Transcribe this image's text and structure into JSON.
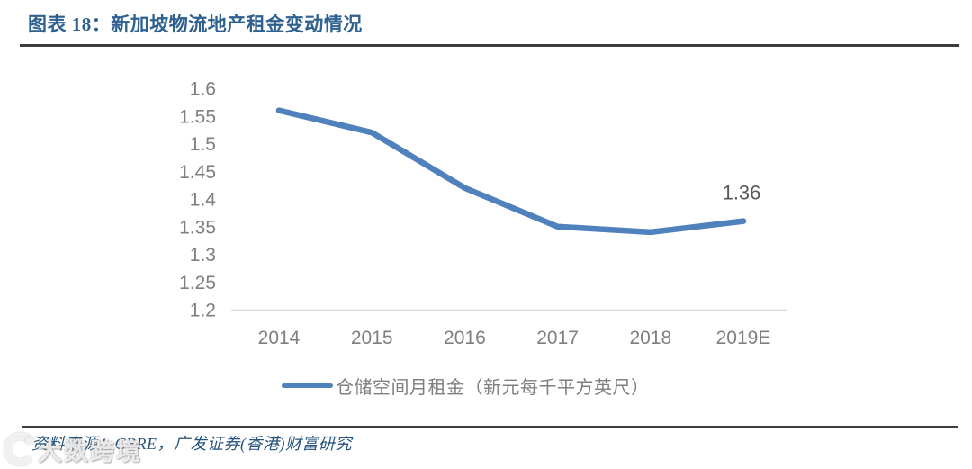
{
  "figure": {
    "title": "图表 18：新加坡物流地产租金变动情况",
    "source_note": "资料来源：CBRE，广发证券(香港)财富研究",
    "watermark_text": "大数跨境"
  },
  "colors": {
    "title_blue": "#2E6090",
    "source_blue": "#24527C",
    "line_blue": "#4F81BD",
    "tick_gray": "#7F7F7F",
    "data_label_gray": "#595959",
    "rule_dark": "#3D3D3D",
    "axis_line_gray": "#D9D9D9"
  },
  "chart_data": {
    "type": "line",
    "categories": [
      "2014",
      "2015",
      "2016",
      "2017",
      "2018",
      "2019E"
    ],
    "series": [
      {
        "name": "仓储空间月租金（新元每千平方英尺）",
        "values": [
          1.56,
          1.52,
          1.42,
          1.35,
          1.34,
          1.36
        ]
      }
    ],
    "title": "",
    "xlabel": "",
    "ylabel": "",
    "ylim": [
      1.2,
      1.6
    ],
    "yticks": [
      1.6,
      1.55,
      1.5,
      1.45,
      1.4,
      1.35,
      1.3,
      1.25,
      1.2
    ],
    "grid": false,
    "legend_position": "bottom",
    "data_label": {
      "category": "2019E",
      "text": "1.36"
    }
  }
}
